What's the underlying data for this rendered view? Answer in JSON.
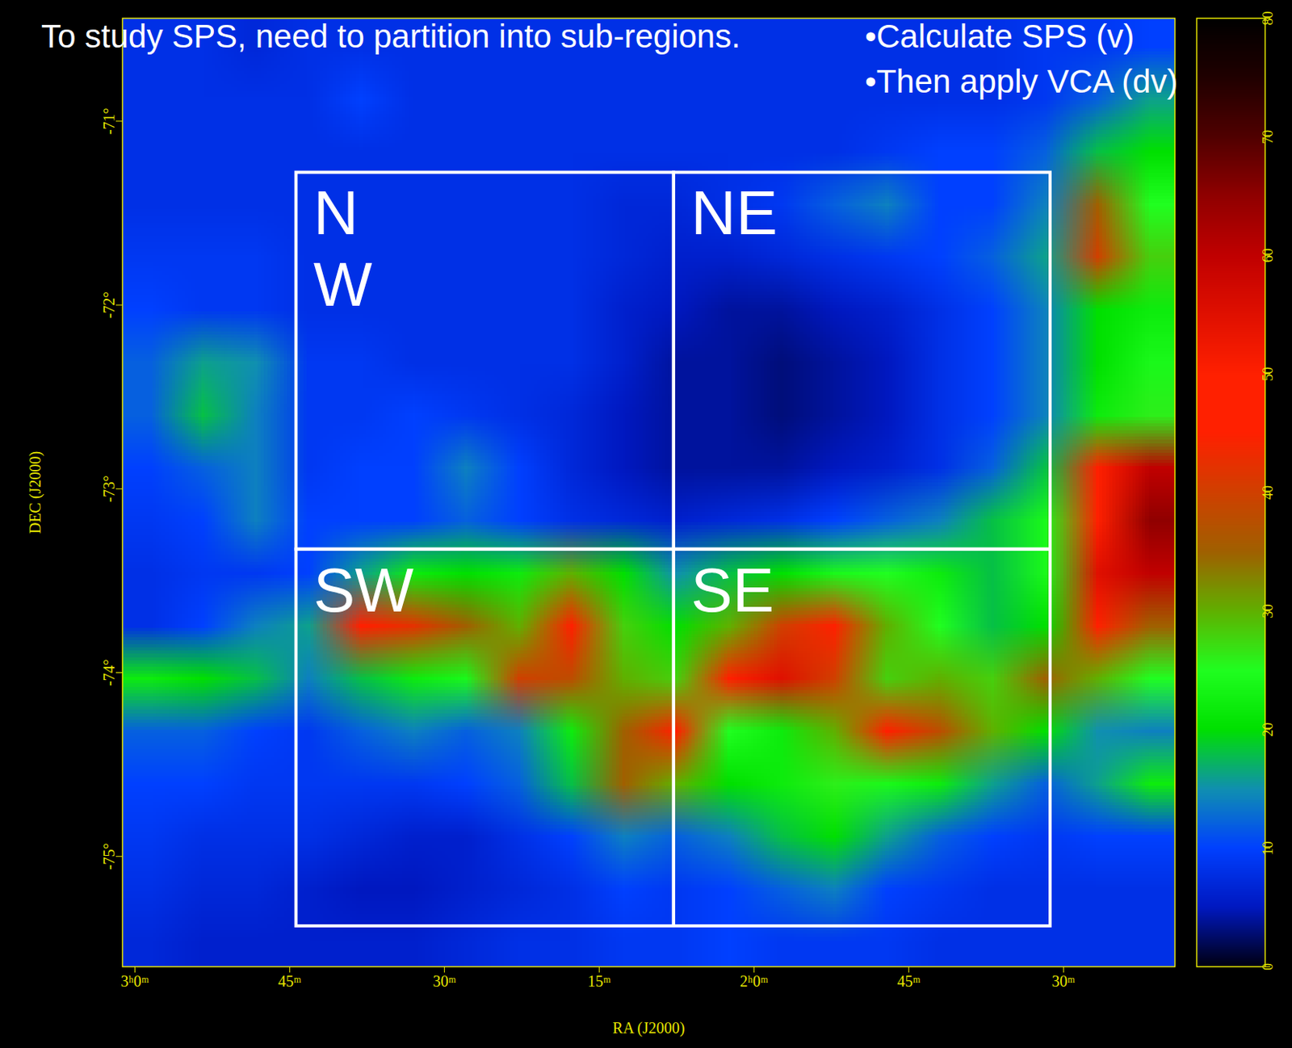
{
  "chart_data": {
    "type": "heatmap",
    "title": "To study SPS, need to partition into sub-regions.",
    "annotations": [
      "•Calculate SPS (v)",
      "•Then apply VCA (dv)"
    ],
    "x_label": "RA (J2000)",
    "y_label": "DEC (J2000)",
    "xlim": [
      181.2,
      79.2
    ],
    "ylim": [
      -75.6,
      -70.44
    ],
    "xticks": [
      {
        "value": 180,
        "label": "3ʰ0ᵐ"
      },
      {
        "value": 165,
        "label": "45ᵐ"
      },
      {
        "value": 150,
        "label": "30ᵐ"
      },
      {
        "value": 135,
        "label": "15ᵐ"
      },
      {
        "value": 120,
        "label": "2ʰ0ᵐ"
      },
      {
        "value": 105,
        "label": "45ᵐ"
      },
      {
        "value": 90,
        "label": "30ᵐ"
      }
    ],
    "yticks": [
      {
        "value": -71,
        "label": "-71°"
      },
      {
        "value": -72,
        "label": "-72°"
      },
      {
        "value": -73,
        "label": "-73°"
      },
      {
        "value": -74,
        "label": "-74°"
      },
      {
        "value": -75,
        "label": "-75°"
      }
    ],
    "cells": [
      [
        8,
        8,
        7,
        8,
        8,
        8,
        8,
        8,
        8,
        8,
        8,
        8,
        8,
        8,
        8,
        8,
        8,
        9,
        9,
        10
      ],
      [
        8,
        8,
        8,
        8,
        10,
        8,
        8,
        8,
        8,
        8,
        8,
        8,
        8,
        8,
        8,
        8,
        8,
        9,
        12,
        16
      ],
      [
        8,
        8,
        8,
        8,
        8,
        8,
        8,
        8,
        8,
        8,
        8,
        8,
        8,
        8,
        9,
        10,
        10,
        12,
        18,
        20
      ],
      [
        8,
        8,
        8,
        8,
        8,
        8,
        8,
        8,
        8,
        7,
        7,
        8,
        9,
        12,
        14,
        10,
        10,
        14,
        35,
        25
      ],
      [
        9,
        9,
        9,
        8,
        8,
        8,
        8,
        8,
        8,
        7,
        6,
        6,
        7,
        8,
        9,
        10,
        12,
        16,
        40,
        28
      ],
      [
        10,
        9,
        9,
        8,
        8,
        8,
        8,
        8,
        8,
        6,
        5,
        4,
        4,
        5,
        6,
        8,
        10,
        14,
        20,
        22
      ],
      [
        12,
        16,
        15,
        9,
        9,
        8,
        8,
        8,
        8,
        6,
        4,
        4,
        3,
        4,
        5,
        8,
        10,
        14,
        20,
        24
      ],
      [
        12,
        18,
        14,
        9,
        9,
        10,
        9,
        8,
        7,
        5,
        4,
        4,
        3,
        4,
        5,
        8,
        10,
        14,
        22,
        26
      ],
      [
        10,
        12,
        14,
        9,
        10,
        10,
        14,
        10,
        7,
        5,
        4,
        4,
        4,
        5,
        6,
        8,
        12,
        18,
        45,
        60
      ],
      [
        9,
        10,
        14,
        10,
        10,
        10,
        12,
        10,
        8,
        7,
        6,
        7,
        8,
        10,
        12,
        14,
        18,
        24,
        50,
        65
      ],
      [
        8,
        9,
        9,
        10,
        16,
        22,
        20,
        22,
        30,
        20,
        15,
        18,
        20,
        24,
        25,
        22,
        18,
        24,
        55,
        60
      ],
      [
        8,
        10,
        14,
        16,
        45,
        42,
        35,
        30,
        45,
        28,
        20,
        30,
        40,
        45,
        30,
        25,
        18,
        20,
        45,
        35
      ],
      [
        22,
        20,
        18,
        14,
        18,
        22,
        24,
        40,
        38,
        30,
        28,
        50,
        55,
        40,
        28,
        30,
        28,
        35,
        30,
        25
      ],
      [
        12,
        12,
        10,
        9,
        12,
        14,
        12,
        14,
        22,
        35,
        50,
        25,
        22,
        30,
        45,
        38,
        30,
        20,
        15,
        14
      ],
      [
        10,
        10,
        9,
        9,
        9,
        9,
        10,
        12,
        18,
        35,
        30,
        20,
        22,
        26,
        24,
        22,
        16,
        12,
        16,
        22
      ],
      [
        9,
        8,
        8,
        8,
        7,
        6,
        6,
        8,
        10,
        14,
        12,
        14,
        18,
        20,
        16,
        12,
        10,
        9,
        10,
        10
      ],
      [
        8,
        7,
        7,
        6,
        5,
        5,
        6,
        7,
        8,
        10,
        9,
        10,
        12,
        14,
        10,
        9,
        8,
        8,
        8,
        8
      ],
      [
        7,
        6,
        6,
        6,
        6,
        6,
        7,
        8,
        8,
        9,
        9,
        10,
        9,
        9,
        9,
        8,
        8,
        8,
        8,
        8
      ]
    ],
    "colorbar": {
      "range": [
        0,
        80
      ],
      "ticks": [
        0,
        10,
        20,
        30,
        40,
        50,
        60,
        70,
        80
      ]
    },
    "regions": [
      {
        "label": "N\nW",
        "ra": [
          164.35,
          127.76
        ],
        "dec": [
          -73.33,
          -71.28
        ]
      },
      {
        "label": "NE",
        "ra": [
          127.76,
          91.26
        ],
        "dec": [
          -73.33,
          -71.28
        ]
      },
      {
        "label": "SW",
        "ra": [
          164.35,
          127.76
        ],
        "dec": [
          -75.38,
          -73.33
        ]
      },
      {
        "label": "SE",
        "ra": [
          127.76,
          91.26
        ],
        "dec": [
          -75.38,
          -73.33
        ]
      }
    ]
  }
}
